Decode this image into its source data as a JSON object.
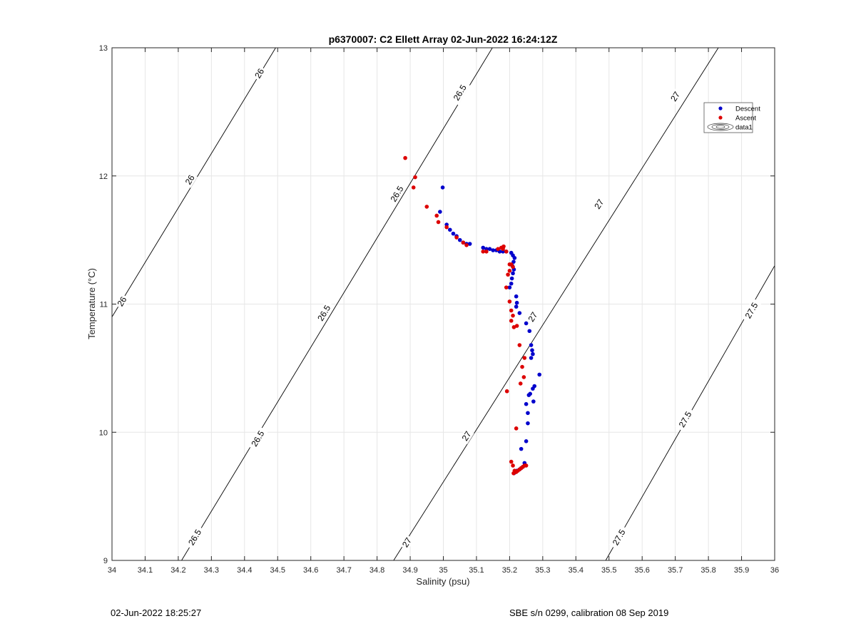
{
  "chart_data": {
    "type": "scatter",
    "title": "p6370007: C2 Ellett Array 02-Jun-2022 16:24:12Z",
    "xlabel": "Salinity (psu)",
    "ylabel": "Temperature (°C)",
    "xlim": [
      34,
      36
    ],
    "ylim": [
      9,
      13
    ],
    "xticks": [
      34,
      34.1,
      34.2,
      34.3,
      34.4,
      34.5,
      34.6,
      34.7,
      34.8,
      34.9,
      35,
      35.1,
      35.2,
      35.3,
      35.4,
      35.5,
      35.6,
      35.7,
      35.8,
      35.9,
      36
    ],
    "xtick_labels": [
      "34",
      "34.1",
      "34.2",
      "34.3",
      "34.4",
      "34.5",
      "34.6",
      "34.7",
      "34.8",
      "34.9",
      "35",
      "35.1",
      "35.2",
      "35.3",
      "35.4",
      "35.5",
      "35.6",
      "35.7",
      "35.8",
      "35.9",
      "36"
    ],
    "yticks": [
      9,
      10,
      11,
      12,
      13
    ],
    "ytick_labels": [
      "9",
      "10",
      "11",
      "12",
      "13"
    ],
    "grid": true,
    "legend_placement": "top-right",
    "legend": [
      "Descent",
      "Ascent",
      "data1"
    ],
    "density_contours": [
      {
        "level": "26",
        "points": [
          [
            34,
            10.9
          ],
          [
            34.494,
            13
          ]
        ],
        "labels": [
          [
            34.03,
            11.02
          ],
          [
            34.235,
            11.97
          ],
          [
            34.445,
            12.8
          ]
        ]
      },
      {
        "level": "26.5",
        "points": [
          [
            34.21,
            9
          ],
          [
            35.148,
            13
          ]
        ],
        "labels": [
          [
            34.25,
            9.18
          ],
          [
            34.44,
            9.95
          ],
          [
            34.64,
            10.93
          ],
          [
            34.86,
            11.86
          ],
          [
            35.05,
            12.65
          ]
        ]
      },
      {
        "level": "27",
        "points": [
          [
            34.85,
            9
          ],
          [
            35.83,
            13
          ]
        ],
        "labels": [
          [
            34.89,
            9.14
          ],
          [
            35.07,
            9.97
          ],
          [
            35.27,
            10.9
          ],
          [
            35.47,
            11.78
          ],
          [
            35.7,
            12.62
          ]
        ]
      },
      {
        "level": "27.5",
        "points": [
          [
            35.49,
            9
          ],
          [
            36,
            11.3
          ]
        ],
        "labels": [
          [
            35.53,
            9.18
          ],
          [
            35.73,
            10.1
          ],
          [
            35.93,
            10.95
          ]
        ]
      }
    ],
    "series": [
      {
        "name": "Descent",
        "color": "#0000cc",
        "points": [
          [
            34.998,
            11.91
          ],
          [
            34.99,
            11.72
          ],
          [
            35.01,
            11.62
          ],
          [
            35.02,
            11.58
          ],
          [
            35.03,
            11.55
          ],
          [
            35.04,
            11.53
          ],
          [
            35.05,
            11.5
          ],
          [
            35.06,
            11.48
          ],
          [
            35.07,
            11.47
          ],
          [
            35.08,
            11.47
          ],
          [
            35.12,
            11.44
          ],
          [
            35.13,
            11.43
          ],
          [
            35.14,
            11.43
          ],
          [
            35.15,
            11.42
          ],
          [
            35.16,
            11.42
          ],
          [
            35.17,
            11.41
          ],
          [
            35.18,
            11.41
          ],
          [
            35.19,
            11.41
          ],
          [
            35.205,
            11.4
          ],
          [
            35.21,
            11.38
          ],
          [
            35.215,
            11.36
          ],
          [
            35.212,
            11.33
          ],
          [
            35.208,
            11.3
          ],
          [
            35.213,
            11.27
          ],
          [
            35.21,
            11.24
          ],
          [
            35.207,
            11.2
          ],
          [
            35.205,
            11.16
          ],
          [
            35.2,
            11.13
          ],
          [
            35.22,
            11.06
          ],
          [
            35.222,
            11.01
          ],
          [
            35.22,
            10.98
          ],
          [
            35.23,
            10.93
          ],
          [
            35.25,
            10.85
          ],
          [
            35.26,
            10.79
          ],
          [
            35.265,
            10.68
          ],
          [
            35.268,
            10.64
          ],
          [
            35.27,
            10.61
          ],
          [
            35.265,
            10.58
          ],
          [
            35.29,
            10.45
          ],
          [
            35.275,
            10.36
          ],
          [
            35.27,
            10.34
          ],
          [
            35.262,
            10.3
          ],
          [
            35.258,
            10.29
          ],
          [
            35.25,
            10.22
          ],
          [
            35.272,
            10.24
          ],
          [
            35.255,
            10.15
          ],
          [
            35.255,
            10.07
          ],
          [
            35.25,
            9.93
          ],
          [
            35.235,
            9.87
          ],
          [
            35.245,
            9.76
          ],
          [
            35.24,
            9.73
          ],
          [
            35.235,
            9.72
          ],
          [
            35.23,
            9.71
          ],
          [
            35.222,
            9.7
          ],
          [
            35.218,
            9.69
          ],
          [
            35.213,
            9.68
          ]
        ]
      },
      {
        "name": "Ascent",
        "color": "#dd0000",
        "points": [
          [
            34.885,
            12.14
          ],
          [
            34.915,
            11.99
          ],
          [
            34.91,
            11.91
          ],
          [
            34.95,
            11.76
          ],
          [
            34.98,
            11.69
          ],
          [
            34.985,
            11.64
          ],
          [
            35.01,
            11.6
          ],
          [
            35.04,
            11.52
          ],
          [
            35.06,
            11.48
          ],
          [
            35.07,
            11.46
          ],
          [
            35.12,
            11.41
          ],
          [
            35.13,
            11.41
          ],
          [
            35.165,
            11.43
          ],
          [
            35.175,
            11.44
          ],
          [
            35.18,
            11.43
          ],
          [
            35.182,
            11.45
          ],
          [
            35.19,
            11.41
          ],
          [
            35.2,
            11.31
          ],
          [
            35.205,
            11.31
          ],
          [
            35.21,
            11.29
          ],
          [
            35.2,
            11.26
          ],
          [
            35.195,
            11.23
          ],
          [
            35.19,
            11.13
          ],
          [
            35.2,
            11.02
          ],
          [
            35.205,
            10.95
          ],
          [
            35.21,
            10.91
          ],
          [
            35.205,
            10.87
          ],
          [
            35.213,
            10.82
          ],
          [
            35.222,
            10.83
          ],
          [
            35.23,
            10.68
          ],
          [
            35.245,
            10.58
          ],
          [
            35.238,
            10.51
          ],
          [
            35.243,
            10.43
          ],
          [
            35.233,
            10.38
          ],
          [
            35.192,
            10.32
          ],
          [
            35.22,
            10.03
          ],
          [
            35.205,
            9.77
          ],
          [
            35.21,
            9.74
          ],
          [
            35.215,
            9.7
          ],
          [
            35.22,
            9.69
          ],
          [
            35.225,
            9.7
          ],
          [
            35.23,
            9.71
          ],
          [
            35.235,
            9.72
          ],
          [
            35.24,
            9.73
          ],
          [
            35.245,
            9.74
          ],
          [
            35.25,
            9.74
          ],
          [
            35.212,
            9.68
          ]
        ]
      }
    ]
  },
  "footer": {
    "timestamp": "02-Jun-2022 18:25:27",
    "calibration": "SBE s/n 0299, calibration 08 Sep 2019"
  }
}
